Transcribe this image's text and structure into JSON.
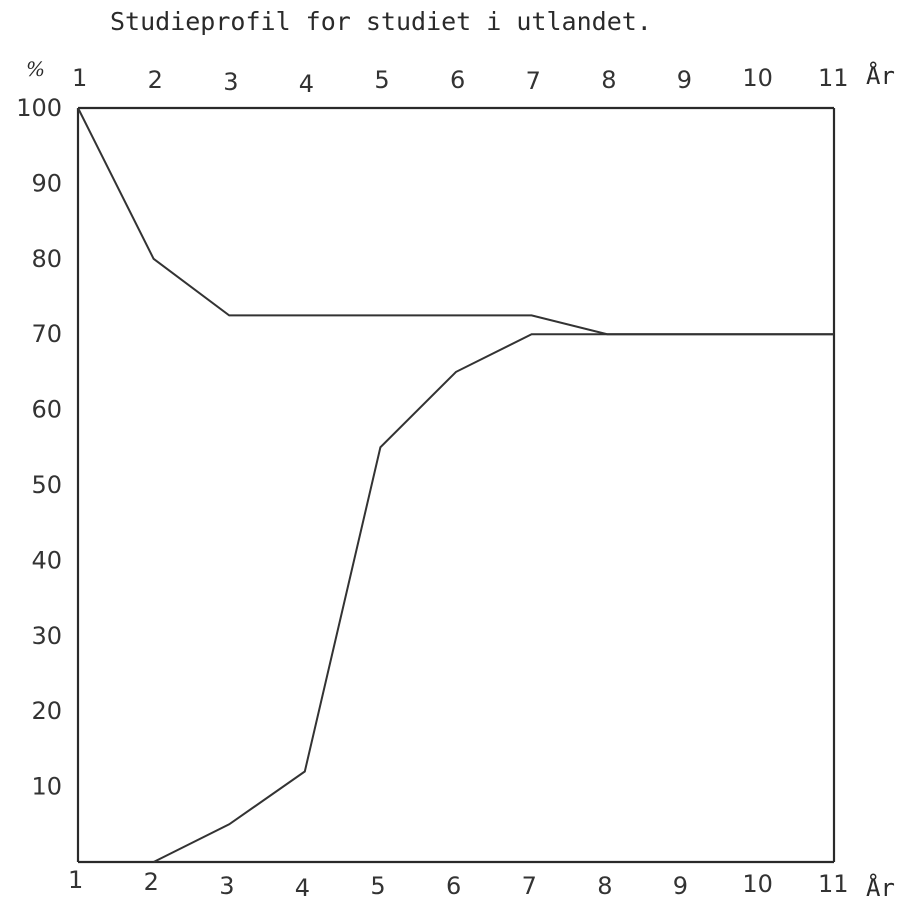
{
  "chart_data": {
    "type": "line",
    "title": "Studieprofil for studiet i utlandet.",
    "xlabel": "År",
    "ylabel": "%",
    "x_ticks": [
      "1",
      "2",
      "3",
      "4",
      "5",
      "6",
      "7",
      "8",
      "9",
      "10",
      "11"
    ],
    "y_ticks": [
      "100",
      "90",
      "80",
      "70",
      "60",
      "50",
      "40",
      "30",
      "20",
      "10"
    ],
    "xlim": [
      1,
      11
    ],
    "ylim": [
      0,
      100
    ],
    "grid": false,
    "series": [
      {
        "x": [
          1,
          2,
          3,
          4,
          5,
          6,
          7,
          8,
          9,
          10,
          11
        ],
        "values": [
          100,
          80,
          72.5,
          72.5,
          72.5,
          72.5,
          72.5,
          70,
          70,
          70,
          70
        ]
      },
      {
        "x": [
          2,
          3,
          4,
          5,
          6,
          7,
          8,
          9,
          10,
          11
        ],
        "values": [
          0,
          5,
          12,
          55,
          65,
          70,
          70,
          70,
          70,
          70
        ]
      }
    ]
  }
}
